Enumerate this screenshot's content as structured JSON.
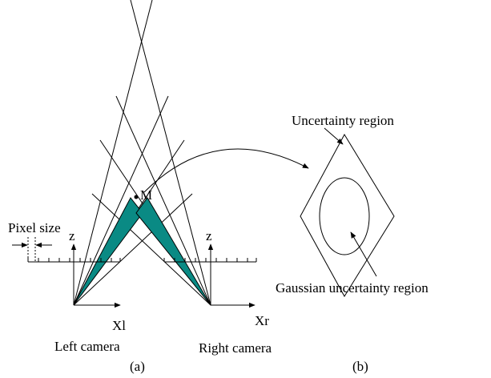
{
  "labels": {
    "uncertainty": "Uncertainty region",
    "point": "M",
    "pixel_size": "Pixel size",
    "z_left": "z",
    "z_right": "z",
    "x_left": "Xl",
    "x_right": "Xr",
    "left_camera": "Left camera",
    "right_camera": "Right camera",
    "gaussian": "Gaussian uncertainty region",
    "panel_a": "(a)",
    "panel_b": "(b)"
  }
}
